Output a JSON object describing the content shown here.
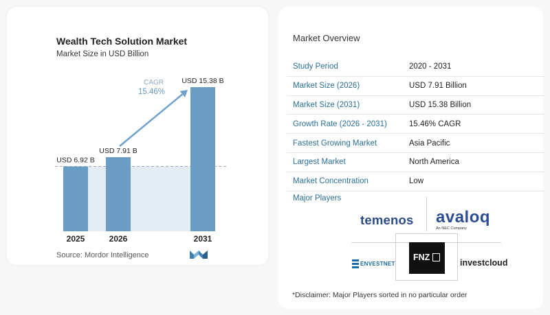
{
  "chart_data": {
    "type": "bar",
    "title": "Wealth Tech Solution Market",
    "subtitle": "Market Size in USD Billion",
    "categories": [
      "2025",
      "2026",
      "2031"
    ],
    "values": [
      6.92,
      7.91,
      15.38
    ],
    "data_labels": [
      "USD 6.92 B",
      "USD 7.91 B",
      "USD 15.38 B"
    ],
    "cagr_label": "CAGR",
    "cagr_value": "15.46%",
    "bar_color": "#6a9dc6",
    "bar_color_dark": "#4f84b0",
    "ylim": [
      0,
      16
    ]
  },
  "source": "Source:  Mordor Intelligence",
  "overview": {
    "title": "Market Overview",
    "rows": [
      {
        "label": "Study Period",
        "value": "2020 - 2031"
      },
      {
        "label": "Market Size (2026)",
        "value": "USD 7.91 Billion"
      },
      {
        "label": "Market Size (2031)",
        "value": "USD 15.38 Billion"
      },
      {
        "label": "Growth Rate (2026 - 2031)",
        "value": "15.46% CAGR"
      },
      {
        "label": "Fastest Growing Market",
        "value": "Asia Pacific"
      },
      {
        "label": "Largest Market",
        "value": "North America"
      },
      {
        "label": "Market Concentration",
        "value": "Low"
      }
    ]
  },
  "players": {
    "title": "Major Players",
    "logos": {
      "temenos": "temenos",
      "avaloq": "avaloq",
      "avaloq_sub": "An NEC Company",
      "envestnet": "ENVESTNET",
      "fnz": "FNZ",
      "investcloud": "investcloud"
    }
  },
  "disclaimer": "*Disclaimer: Major Players sorted in no particular order"
}
